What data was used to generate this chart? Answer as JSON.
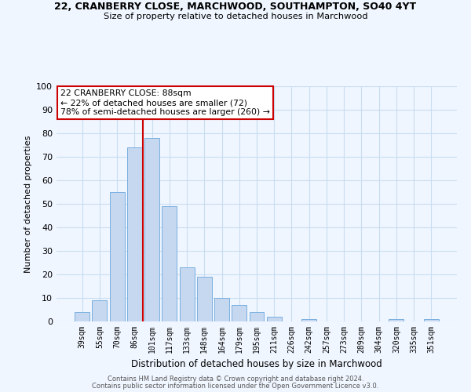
{
  "title1": "22, CRANBERRY CLOSE, MARCHWOOD, SOUTHAMPTON, SO40 4YT",
  "title2": "Size of property relative to detached houses in Marchwood",
  "xlabel": "Distribution of detached houses by size in Marchwood",
  "ylabel": "Number of detached properties",
  "categories": [
    "39sqm",
    "55sqm",
    "70sqm",
    "86sqm",
    "101sqm",
    "117sqm",
    "133sqm",
    "148sqm",
    "164sqm",
    "179sqm",
    "195sqm",
    "211sqm",
    "226sqm",
    "242sqm",
    "257sqm",
    "273sqm",
    "289sqm",
    "304sqm",
    "320sqm",
    "335sqm",
    "351sqm"
  ],
  "values": [
    4,
    9,
    55,
    74,
    78,
    49,
    23,
    19,
    10,
    7,
    4,
    2,
    0,
    1,
    0,
    0,
    0,
    0,
    1,
    0,
    1
  ],
  "bar_color": "#c5d8f0",
  "bar_edge_color": "#7aafe0",
  "grid_color": "#c8ddf0",
  "vline_x_index": 3,
  "vline_color": "#cc0000",
  "annotation_title": "22 CRANBERRY CLOSE: 88sqm",
  "annotation_line1": "← 22% of detached houses are smaller (72)",
  "annotation_line2": "78% of semi-detached houses are larger (260) →",
  "box_edge_color": "#cc0000",
  "ylim": [
    0,
    100
  ],
  "yticks": [
    0,
    10,
    20,
    30,
    40,
    50,
    60,
    70,
    80,
    90,
    100
  ],
  "footer1": "Contains HM Land Registry data © Crown copyright and database right 2024.",
  "footer2": "Contains public sector information licensed under the Open Government Licence v3.0.",
  "bg_color": "#f0f6ff"
}
